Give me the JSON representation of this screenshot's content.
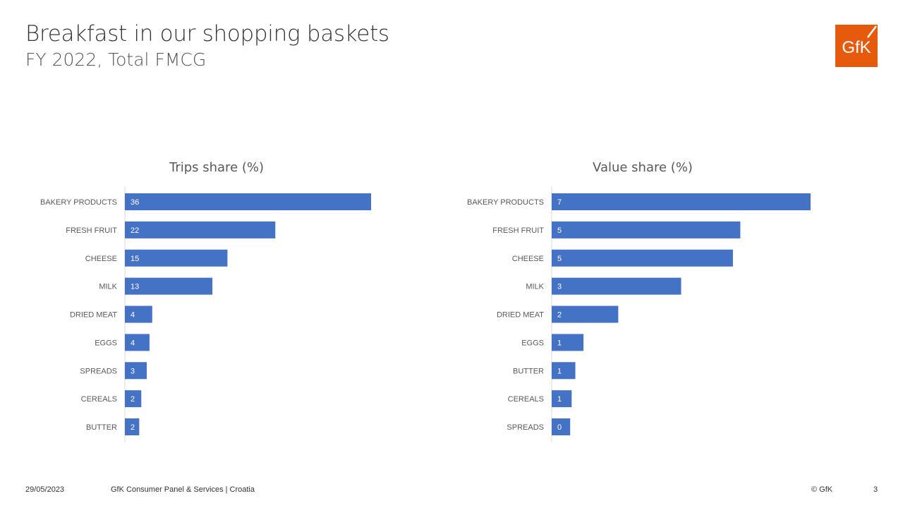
{
  "header": {
    "title": "Breakfast in our shopping baskets",
    "subtitle": "FY 2022, Total FMCG",
    "logo_text": "GfK"
  },
  "colors": {
    "bar": "#4472C4",
    "brand": "#E55A0C",
    "axis": "#D9D9D9"
  },
  "chart_data": [
    {
      "type": "bar",
      "orientation": "horizontal",
      "title": "Trips share (%)",
      "categories": [
        "BAKERY PRODUCTS",
        "FRESH FRUIT",
        "CHEESE",
        "MILK",
        "DRIED MEAT",
        "EGGS",
        "SPREADS",
        "CEREALS",
        "BUTTER"
      ],
      "values": [
        36,
        22,
        15,
        13,
        4,
        4,
        3,
        2,
        2
      ],
      "bar_values": [
        36,
        22,
        15,
        12.8,
        4,
        3.6,
        3.2,
        2.4,
        2.1
      ],
      "xlim": [
        0,
        38
      ]
    },
    {
      "type": "bar",
      "orientation": "horizontal",
      "title": "Value share (%)",
      "categories": [
        "BAKERY PRODUCTS",
        "FRESH FRUIT",
        "CHEESE",
        "MILK",
        "DRIED MEAT",
        "EGGS",
        "BUTTER",
        "CEREALS",
        "SPREADS"
      ],
      "values": [
        7,
        5,
        5,
        3,
        2,
        1,
        1,
        1,
        0
      ],
      "bar_values": [
        7.0,
        5.1,
        4.9,
        3.5,
        1.8,
        0.86,
        0.64,
        0.54,
        0.5
      ],
      "xlim": [
        0,
        7.3
      ]
    }
  ],
  "footer": {
    "date": "29/05/2023",
    "source": "GfK Consumer Panel & Services | Croatia",
    "copyright": "© GfK",
    "page": "3"
  }
}
